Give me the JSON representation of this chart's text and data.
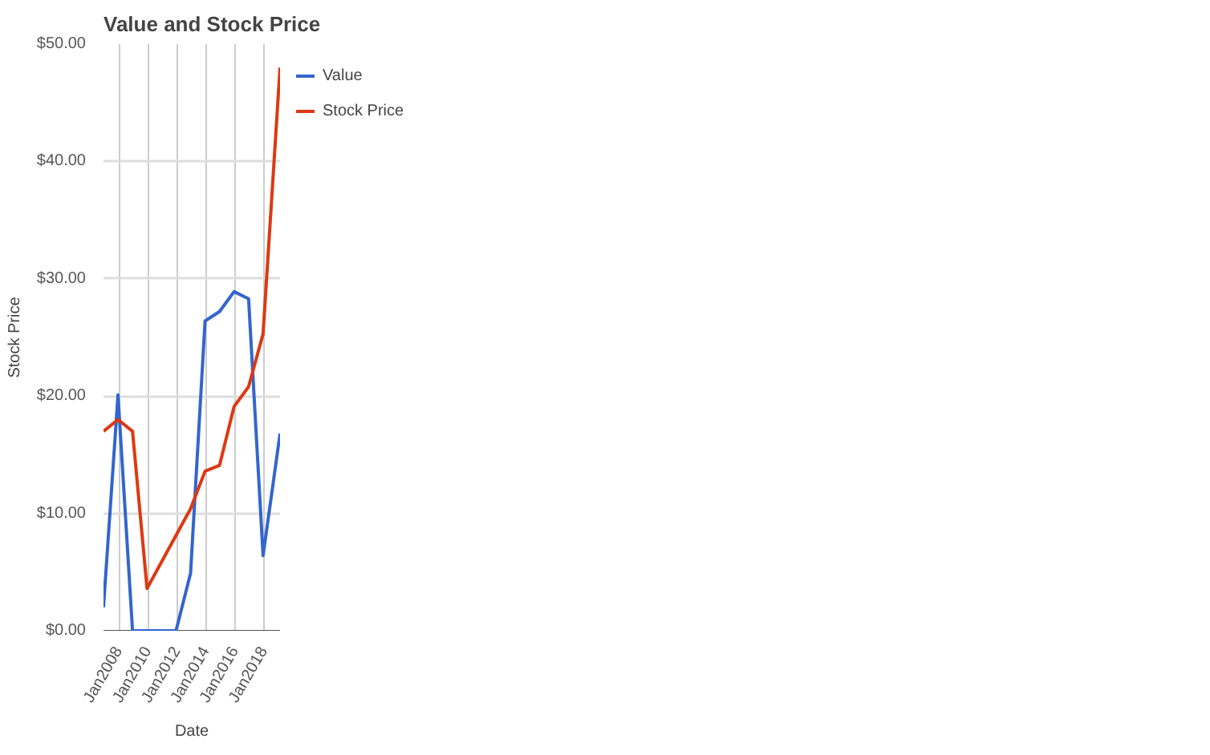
{
  "chart_data": {
    "type": "line",
    "title": "Value and Stock Price",
    "xlabel": "Date",
    "ylabel": "Stock Price",
    "series": [
      {
        "name": "Value",
        "color": "#3366cc",
        "x": [
          "2006-12",
          "2007-12",
          "2008-12",
          "2011-12",
          "2012-12",
          "2013-12",
          "2014-12",
          "2015-12",
          "2016-12",
          "2017-12",
          "2019-02"
        ],
        "values": [
          2.0,
          20.1,
          0,
          0,
          4.9,
          26.4,
          27.2,
          28.9,
          28.3,
          6.4,
          16.8
        ]
      },
      {
        "name": "Stock Price",
        "color": "#dc3912",
        "x": [
          "2006-12",
          "2007-12",
          "2008-12",
          "2009-12",
          "2012-12",
          "2013-12",
          "2014-12",
          "2015-12",
          "2016-12",
          "2017-12",
          "2019-02"
        ],
        "values": [
          17.0,
          18.0,
          17.0,
          3.6,
          10.4,
          13.6,
          14.1,
          19.1,
          20.8,
          25.3,
          48.0
        ]
      }
    ],
    "xlim": [
      "2006-12",
      "2019-02"
    ],
    "xticks": [
      {
        "value": "2008-01",
        "label": "Jan2008"
      },
      {
        "value": "2010-01",
        "label": "Jan2010"
      },
      {
        "value": "2012-01",
        "label": "Jan2012"
      },
      {
        "value": "2014-01",
        "label": "Jan2014"
      },
      {
        "value": "2016-01",
        "label": "Jan2016"
      },
      {
        "value": "2018-01",
        "label": "Jan2018"
      }
    ],
    "ylim": [
      0,
      50
    ],
    "yticks": [
      {
        "value": 0,
        "label": "$0.00"
      },
      {
        "value": 10,
        "label": "$10.00"
      },
      {
        "value": 20,
        "label": "$20.00"
      },
      {
        "value": 30,
        "label": "$30.00"
      },
      {
        "value": 40,
        "label": "$40.00"
      },
      {
        "value": 50,
        "label": "$50.00"
      }
    ],
    "grid": true,
    "legend": "top right",
    "marker": "none",
    "line_style": "solid"
  }
}
